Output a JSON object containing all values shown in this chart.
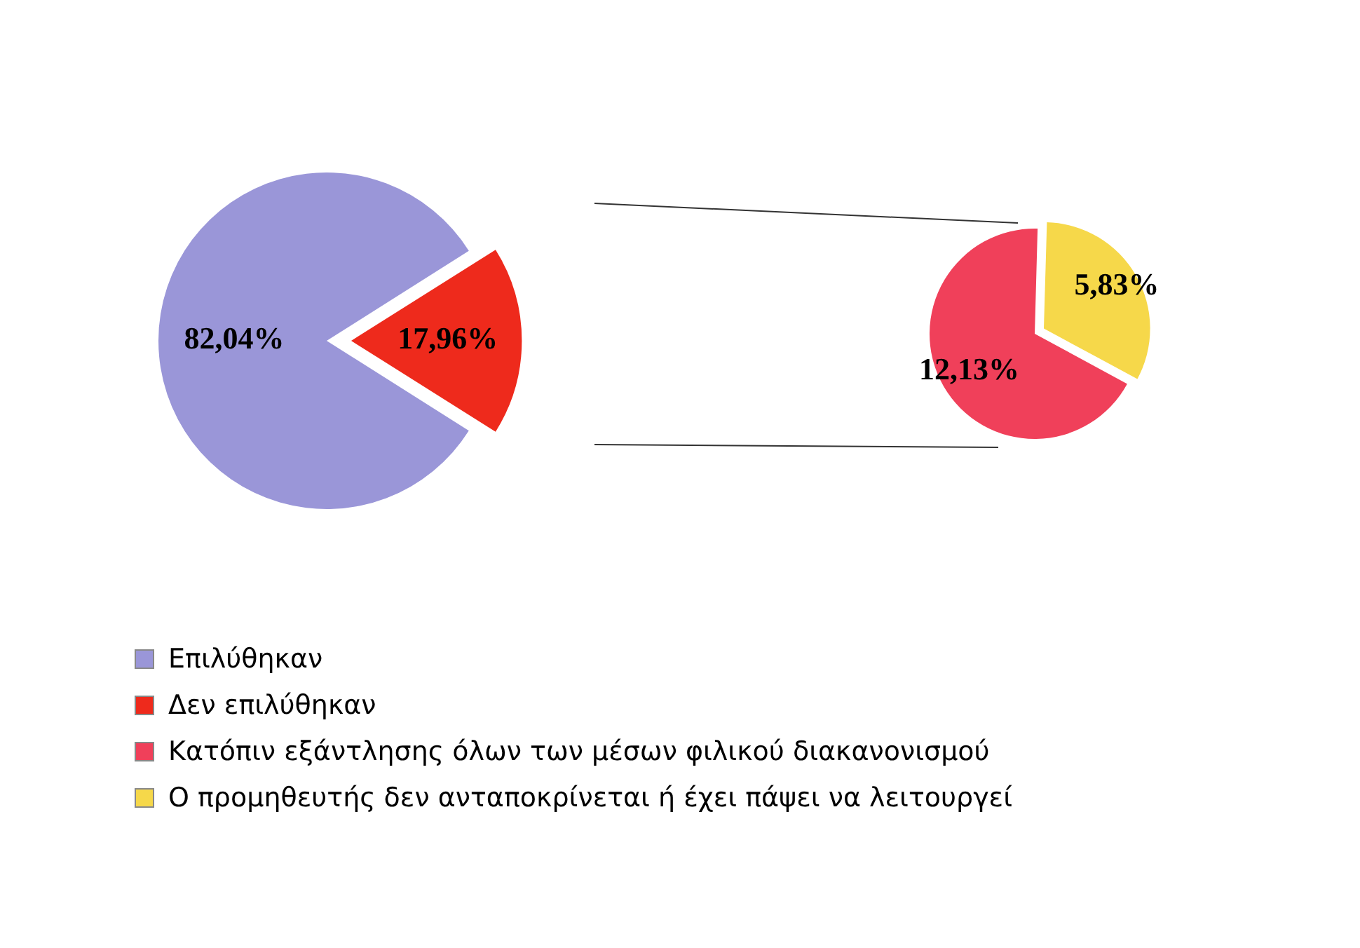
{
  "chart_data": [
    {
      "type": "pie",
      "categories": [
        "Επιλύθηκαν",
        "Δεν επιλύθηκαν"
      ],
      "values": [
        82.04,
        17.96
      ],
      "colors": [
        "#9a96d8",
        "#ee2a1c"
      ],
      "value_labels": [
        "82,04%",
        "17,96%"
      ],
      "legend": "bottom"
    },
    {
      "type": "pie",
      "categories": [
        "Κατόπιν εξάντλησης όλων των μέσων φιλικού διακανονισμού",
        "Ο προμηθευτής δεν ανταποκρίνεται ή έχει πάψει να λειτουργεί"
      ],
      "values": [
        12.13,
        5.83
      ],
      "colors": [
        "#f0405a",
        "#f6d84a"
      ],
      "value_labels": [
        "12,13%",
        "5,83%"
      ],
      "legend": "bottom"
    }
  ]
}
